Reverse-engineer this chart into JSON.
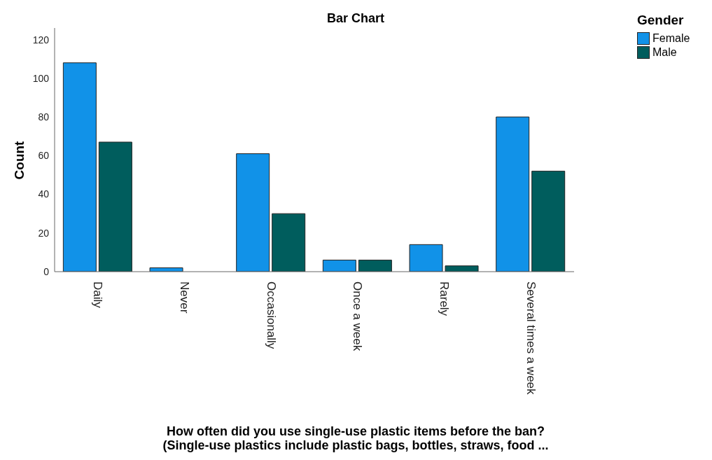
{
  "chart_data": {
    "type": "bar",
    "title": "Bar Chart",
    "xlabel": "How often did you use single-use plastic items before the ban?\n(Single-use plastics include plastic bags, bottles, straws, food ...",
    "ylabel": "Count",
    "legend_title": "Gender",
    "legend": "top right",
    "categories": [
      "Daily",
      "Never",
      "Occasionally",
      "Once a week",
      "Rarely",
      "Several times a week"
    ],
    "series": [
      {
        "name": "Female",
        "color": "#1192e8",
        "values": [
          108,
          2,
          61,
          6,
          14,
          80
        ]
      },
      {
        "name": "Male",
        "color": "#005d5d",
        "values": [
          67,
          0,
          30,
          6,
          3,
          52
        ]
      }
    ],
    "ylim": [
      0,
      126
    ],
    "yticks": [
      0,
      20,
      40,
      60,
      80,
      100,
      120
    ],
    "grid": false
  }
}
